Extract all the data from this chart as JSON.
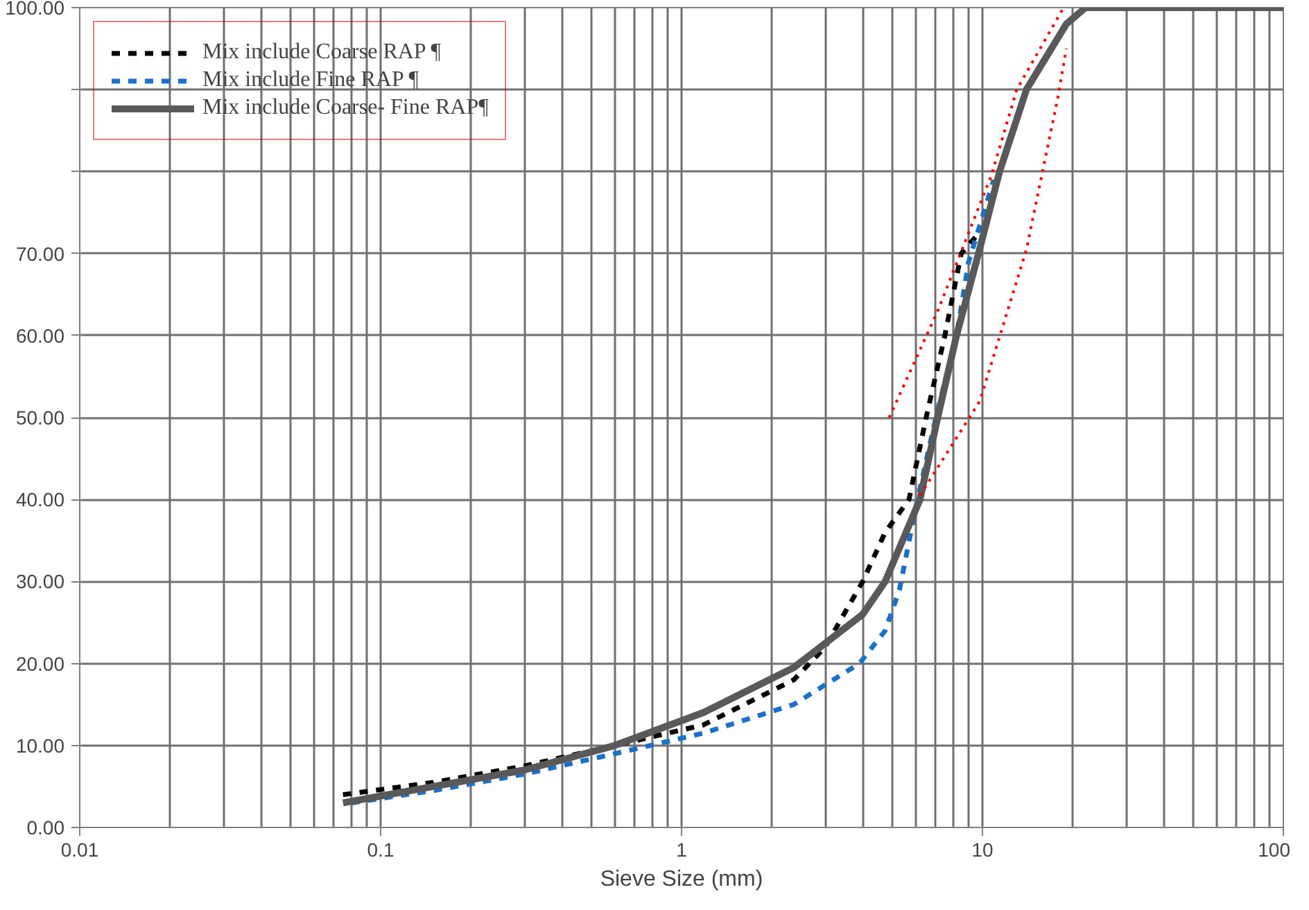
{
  "chart_data": {
    "type": "line",
    "xlabel": "Sieve Size (mm)",
    "log": "x",
    "grid": true,
    "legend": "top left",
    "xlim": [
      0.01,
      100
    ],
    "xticks": [
      0.01,
      0.1,
      1,
      10,
      100
    ],
    "ylim": [
      0,
      100
    ],
    "yticks": [
      {
        "value": 0,
        "label": "0.00"
      },
      {
        "value": 10,
        "label": "10.00"
      },
      {
        "value": 20,
        "label": "20.00"
      },
      {
        "value": 30,
        "label": "30.00"
      },
      {
        "value": 40,
        "label": "40.00"
      },
      {
        "value": 50,
        "label": "50.00"
      },
      {
        "value": 60,
        "label": "60.00"
      },
      {
        "value": 70,
        "label": "70.00"
      },
      {
        "value": 80,
        "label": null
      },
      {
        "value": 90,
        "label": null
      },
      {
        "value": 100,
        "label": "100.00"
      }
    ],
    "series": [
      {
        "name": "Mix include Coarse RAP ¶",
        "color": "#000000",
        "line_style": "dashed",
        "x": [
          0.075,
          0.15,
          0.3,
          0.6,
          1.18,
          2.36,
          3,
          4,
          4.75,
          5.7,
          6.5,
          7.5,
          8.5,
          10
        ],
        "values": [
          4,
          5.5,
          7.5,
          10,
          12.5,
          18,
          22,
          30,
          36,
          40,
          50,
          60,
          70,
          73
        ]
      },
      {
        "name": "Mix include Fine RAP ¶",
        "color": "#1a72c8",
        "line_style": "dashed",
        "x": [
          0.08,
          0.15,
          0.3,
          0.6,
          1.18,
          2.36,
          3.9,
          4.75,
          5.3,
          6,
          7,
          8.2,
          9,
          10.9
        ],
        "values": [
          3,
          4.5,
          6.5,
          9,
          11.5,
          15,
          20,
          24,
          29,
          39,
          50,
          60,
          69,
          79
        ]
      },
      {
        "name": "Mix include Coarse- Fine RAP¶",
        "color": "#595959",
        "line_style": "solid",
        "x": [
          0.075,
          0.15,
          0.3,
          0.6,
          1.18,
          2.36,
          4,
          4.75,
          6.2,
          7.1,
          8.2,
          9.7,
          11.4,
          14,
          19,
          22,
          100
        ],
        "values": [
          3,
          5,
          7,
          10,
          14,
          19.5,
          26,
          30,
          40,
          50,
          60,
          70,
          80,
          90,
          98,
          100,
          100
        ]
      },
      {
        "color": "#ff0000",
        "line_style": "dotted",
        "x": [
          4.9,
          7.1,
          10.7,
          13,
          18.6
        ],
        "values": [
          50,
          63,
          79.5,
          90,
          100
        ]
      },
      {
        "color": "#ff0000",
        "line_style": "dotted",
        "x": [
          6.2,
          9.8,
          14,
          17.8,
          19
        ],
        "values": [
          40.5,
          52,
          70.5,
          89,
          95
        ]
      }
    ]
  }
}
